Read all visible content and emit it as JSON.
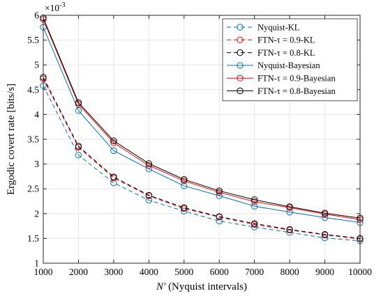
{
  "chart_data": {
    "type": "line",
    "xlabel_symbol": "N′",
    "xlabel_rest": " (Nyquist intervals)",
    "ylabel": "Ergodic covert rate [bits/s]",
    "y_multiplier": "×10",
    "y_exponent": "-3",
    "x": [
      1000,
      2000,
      3000,
      4000,
      5000,
      6000,
      7000,
      8000,
      9000,
      10000
    ],
    "xlim": [
      1000,
      10000
    ],
    "ylim": [
      1,
      6
    ],
    "xticks": [
      1000,
      2000,
      3000,
      4000,
      5000,
      6000,
      7000,
      8000,
      9000,
      10000
    ],
    "xtick_labels": [
      "1000",
      "2000",
      "3000",
      "4000",
      "5000",
      "6000",
      "7000",
      "8000",
      "9000",
      "10000"
    ],
    "yticks": [
      1,
      1.5,
      2,
      2.5,
      3,
      3.5,
      4,
      4.5,
      5,
      5.5,
      6
    ],
    "ytick_labels": [
      "1",
      "1.5",
      "2",
      "2.5",
      "3",
      "3.5",
      "4",
      "4.5",
      "5",
      "5.5",
      "6"
    ],
    "grid": true,
    "legend_position": "top-right",
    "series": [
      {
        "name": "Nyquist-KL",
        "color": "#0072BD",
        "dash": "dashed",
        "marker": "circle",
        "values": [
          4.58,
          3.18,
          2.62,
          2.27,
          2.05,
          1.85,
          1.73,
          1.62,
          1.51,
          1.45
        ]
      },
      {
        "name": "FTN-τ = 0.9-KL",
        "color": "#FF0000",
        "dash": "dashed",
        "marker": "circle",
        "values": [
          4.72,
          3.34,
          2.72,
          2.36,
          2.1,
          1.93,
          1.78,
          1.67,
          1.57,
          1.49
        ]
      },
      {
        "name": "FTN-τ = 0.8-KL",
        "color": "#000000",
        "dash": "dashed",
        "marker": "circle",
        "values": [
          4.75,
          3.36,
          2.74,
          2.37,
          2.12,
          1.94,
          1.8,
          1.68,
          1.58,
          1.5
        ]
      },
      {
        "name": "Nyquist-Bayesian",
        "color": "#0072BD",
        "dash": "solid",
        "marker": "circle",
        "values": [
          5.76,
          4.08,
          3.27,
          2.9,
          2.56,
          2.36,
          2.15,
          2.03,
          1.92,
          1.82
        ]
      },
      {
        "name": "FTN-τ = 0.9-Bayesian",
        "color": "#FF0000",
        "dash": "solid",
        "marker": "circle",
        "values": [
          5.92,
          4.21,
          3.43,
          2.97,
          2.66,
          2.43,
          2.24,
          2.12,
          1.99,
          1.88
        ]
      },
      {
        "name": "FTN-τ = 0.8-Bayesian",
        "color": "#000000",
        "dash": "solid",
        "marker": "circle",
        "values": [
          5.95,
          4.24,
          3.47,
          3.01,
          2.69,
          2.46,
          2.28,
          2.14,
          2.01,
          1.91
        ]
      }
    ]
  }
}
